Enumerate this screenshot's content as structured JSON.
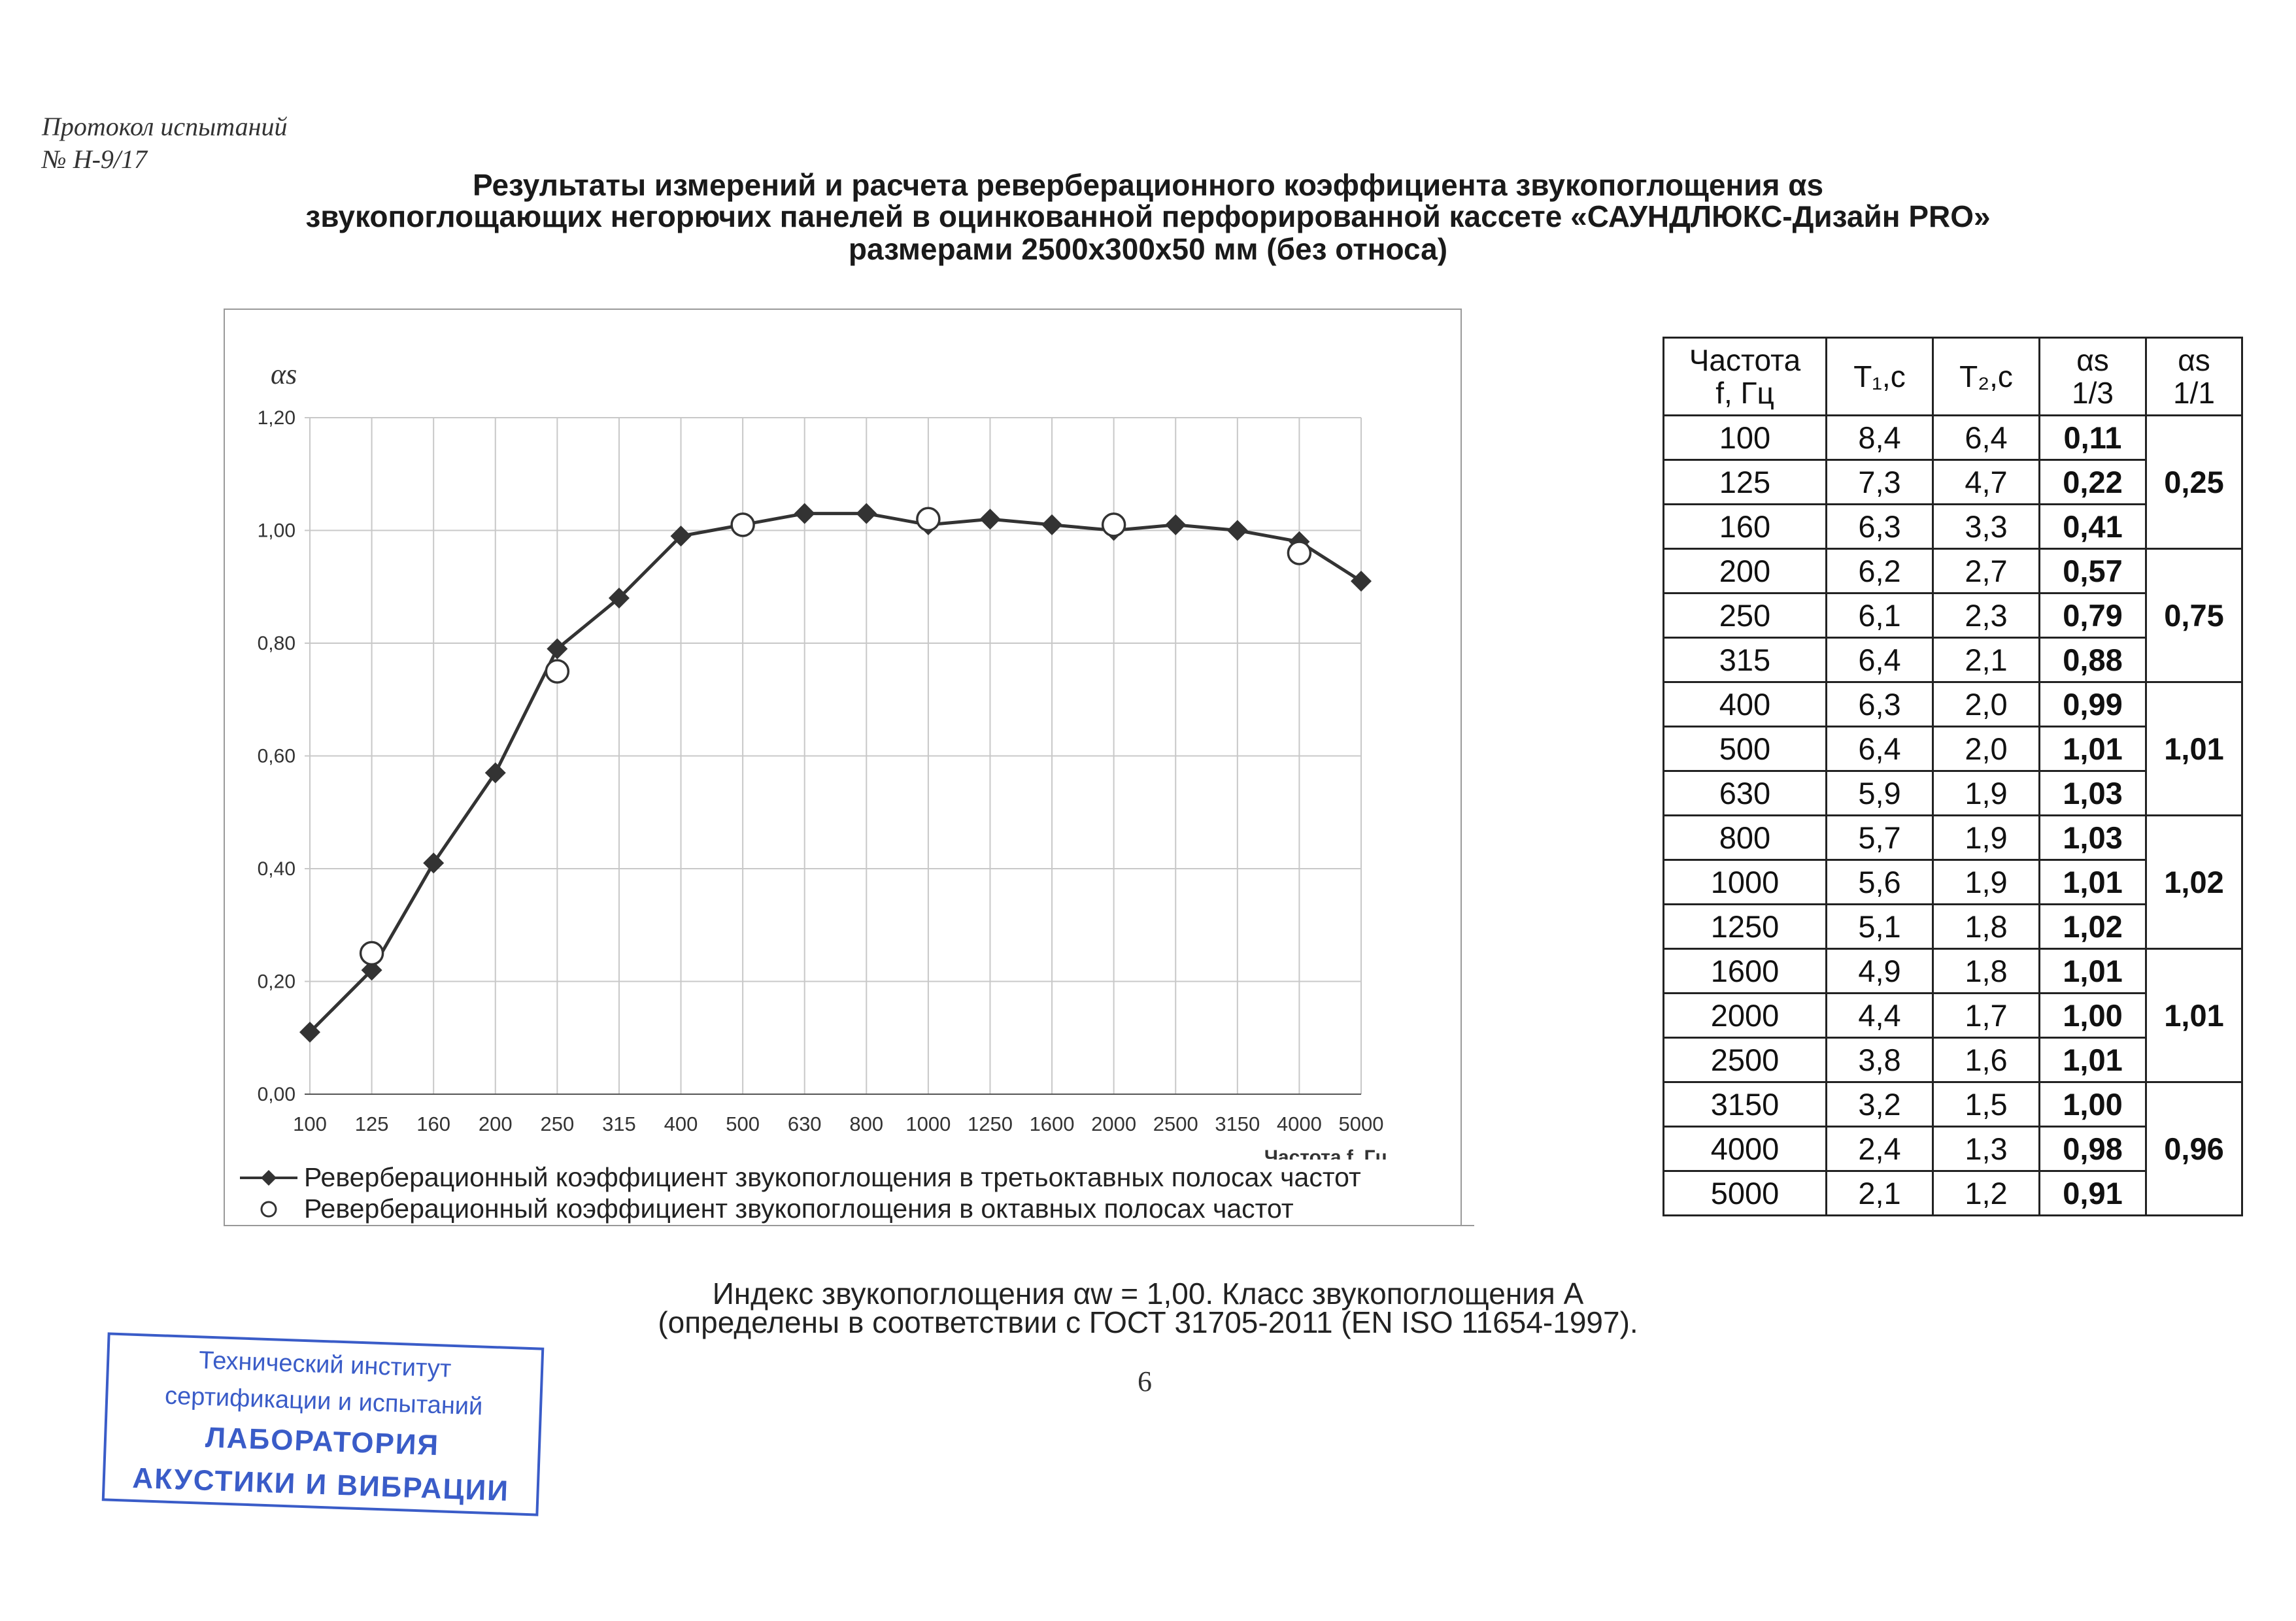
{
  "header": {
    "line1": "Протокол испытаний",
    "line2": "№ Н-9/17"
  },
  "title": {
    "line1": "Результаты измерений и расчета реверберационного коэффициента звукопоглощения  αs",
    "line2": "звукопоглощающих негорючих  панелей в оцинкованной перфорированной кассете  «САУНДЛЮКС-Дизайн PRO»",
    "line3": "размерами 2500х300х50 мм (без относа)"
  },
  "chart_data": {
    "type": "line",
    "ylabel": "αs",
    "xlabel": "Частота f, Гц",
    "ylim": [
      0,
      1.2
    ],
    "yticks": [
      "0,00",
      "0,20",
      "0,40",
      "0,60",
      "0,80",
      "1,00",
      "1,20"
    ],
    "categories": [
      "100",
      "125",
      "160",
      "200",
      "250",
      "315",
      "400",
      "500",
      "630",
      "800",
      "1000",
      "1250",
      "1600",
      "2000",
      "2500",
      "3150",
      "4000",
      "5000"
    ],
    "grid": true,
    "legend_position": "bottom",
    "series": [
      {
        "name": "Реверберационный коэффициент звукопоглощения в третьоктавных полосах частот",
        "marker": "diamond",
        "color": "#333333",
        "values": [
          0.11,
          0.22,
          0.41,
          0.57,
          0.79,
          0.88,
          0.99,
          1.01,
          1.03,
          1.03,
          1.01,
          1.02,
          1.01,
          1.0,
          1.01,
          1.0,
          0.98,
          0.91
        ]
      },
      {
        "name": "Реверберационный коэффициент звукопоглощения в октавных полосах частот",
        "marker": "circle-open",
        "color": "#333333",
        "x": [
          "125",
          "250",
          "500",
          "1000",
          "2000",
          "4000"
        ],
        "values": [
          0.25,
          0.75,
          1.01,
          1.02,
          1.01,
          0.96
        ]
      }
    ]
  },
  "table": {
    "headers": [
      {
        "l1": "Частота",
        "l2": "f, Гц"
      },
      {
        "l1": "T₁,c",
        "l2": ""
      },
      {
        "l1": "T₂,c",
        "l2": ""
      },
      {
        "l1": "αs",
        "l2": "1/3"
      },
      {
        "l1": "αs",
        "l2": "1/1"
      }
    ],
    "rows": [
      [
        "100",
        "8,4",
        "6,4",
        "0,11"
      ],
      [
        "125",
        "7,3",
        "4,7",
        "0,22"
      ],
      [
        "160",
        "6,3",
        "3,3",
        "0,41"
      ],
      [
        "200",
        "6,2",
        "2,7",
        "0,57"
      ],
      [
        "250",
        "6,1",
        "2,3",
        "0,79"
      ],
      [
        "315",
        "6,4",
        "2,1",
        "0,88"
      ],
      [
        "400",
        "6,3",
        "2,0",
        "0,99"
      ],
      [
        "500",
        "6,4",
        "2,0",
        "1,01"
      ],
      [
        "630",
        "5,9",
        "1,9",
        "1,03"
      ],
      [
        "800",
        "5,7",
        "1,9",
        "1,03"
      ],
      [
        "1000",
        "5,6",
        "1,9",
        "1,01"
      ],
      [
        "1250",
        "5,1",
        "1,8",
        "1,02"
      ],
      [
        "1600",
        "4,9",
        "1,8",
        "1,01"
      ],
      [
        "2000",
        "4,4",
        "1,7",
        "1,00"
      ],
      [
        "2500",
        "3,8",
        "1,6",
        "1,01"
      ],
      [
        "3150",
        "3,2",
        "1,5",
        "1,00"
      ],
      [
        "4000",
        "2,4",
        "1,3",
        "0,98"
      ],
      [
        "5000",
        "2,1",
        "1,2",
        "0,91"
      ]
    ],
    "octave": [
      "0,25",
      "0,75",
      "1,01",
      "1,02",
      "1,01",
      "0,96"
    ]
  },
  "index": {
    "line1": "Индекс звукопоглощения αw  = 1,00. Класс звукопоглощения  A",
    "line2": "(определены в соответствии с ГОСТ 31705-2011 (EN ISO 11654-1997)."
  },
  "page_number": "6",
  "stamp": {
    "line1": "Технический институт",
    "line2": "сертификации и испытаний",
    "line3": "ЛАБОРАТОРИЯ",
    "line4": "АКУСТИКИ И ВИБРАЦИИ"
  }
}
